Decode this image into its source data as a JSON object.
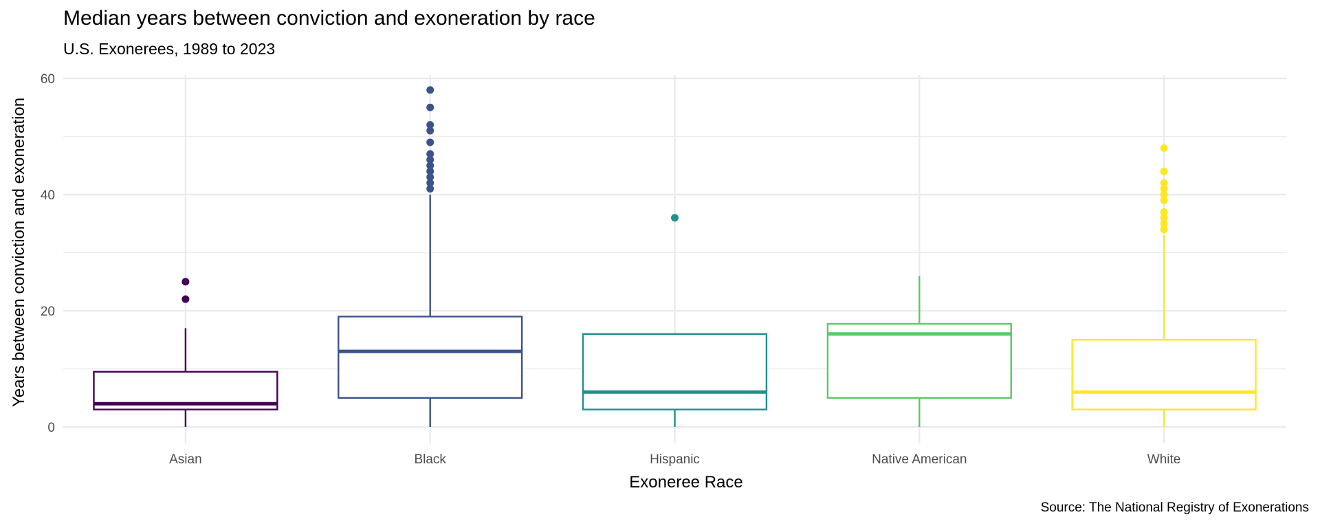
{
  "chart_data": {
    "type": "boxplot",
    "title": "Median years between conviction and exoneration by race",
    "subtitle": "U.S. Exonerees, 1989 to 2023",
    "caption": "Source: The National Registry of Exonerations",
    "xlabel": "Exoneree Race",
    "ylabel": "Years between conviction and exoneration",
    "ylim": [
      0,
      60
    ],
    "yticks": [
      0,
      20,
      40,
      60
    ],
    "grid": true,
    "legend": "none",
    "categories": [
      "Asian",
      "Black",
      "Hispanic",
      "Native American",
      "White"
    ],
    "colors": [
      "#440154",
      "#3b528b",
      "#21908c",
      "#5dc863",
      "#fde725"
    ],
    "boxes": [
      {
        "category": "Asian",
        "whisker_low": 0,
        "q1": 3,
        "median": 4,
        "q3": 9.5,
        "whisker_high": 17,
        "outliers": [
          22,
          25
        ]
      },
      {
        "category": "Black",
        "whisker_low": 0,
        "q1": 5,
        "median": 13,
        "q3": 19,
        "whisker_high": 40,
        "outliers": [
          41,
          42,
          43,
          44,
          45,
          46,
          47,
          49,
          51,
          52,
          55,
          58
        ]
      },
      {
        "category": "Hispanic",
        "whisker_low": 0,
        "q1": 3,
        "median": 6,
        "q3": 16,
        "whisker_high": 16,
        "outliers": [
          36
        ]
      },
      {
        "category": "Native American",
        "whisker_low": 0,
        "q1": 5,
        "median": 16,
        "q3": 17.75,
        "whisker_high": 26,
        "outliers": []
      },
      {
        "category": "White",
        "whisker_low": 0,
        "q1": 3,
        "median": 6,
        "q3": 15,
        "whisker_high": 33,
        "outliers": [
          34,
          35,
          36,
          37,
          39,
          40,
          41,
          42,
          44,
          48
        ]
      }
    ]
  }
}
